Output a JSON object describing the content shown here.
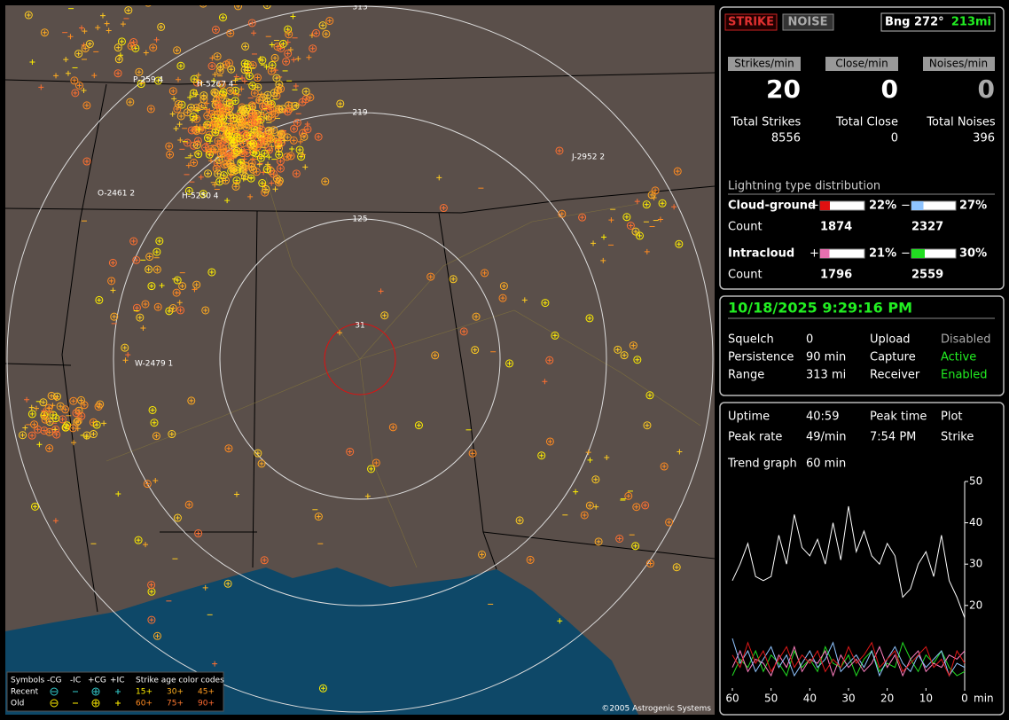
{
  "map": {
    "ring_labels": [
      313,
      219,
      125,
      31
    ],
    "storm_labels": [
      "P-259 4",
      "H-5267 4",
      "J-2952 2",
      "O-2461 2",
      "H-5250 4",
      "W-2479 1"
    ],
    "legend": {
      "symbols": "Symbols",
      "types": [
        "-CG",
        "-IC",
        "+CG",
        "+IC"
      ],
      "age_title": "Strike age color codes",
      "recent": "Recent",
      "old": "Old",
      "recent_ages": [
        "15+",
        "30+",
        "45+"
      ],
      "old_ages": [
        "60+",
        "75+",
        "90+"
      ]
    },
    "copyright": "©2005 Astrogenic Systems"
  },
  "status": {
    "strike": "STRIKE",
    "noise": "NOISE",
    "bearing": "Bng 272°",
    "distance": "213mi"
  },
  "rates": {
    "labels": [
      "Strikes/min",
      "Close/min",
      "Noises/min"
    ],
    "values": [
      20,
      0,
      0
    ],
    "total_labels": [
      "Total Strikes",
      "Total Close",
      "Total Noises"
    ],
    "totals": [
      8556,
      0,
      396
    ]
  },
  "distribution": {
    "title": "Lightning type distribution",
    "count_label": "Count",
    "rows": [
      {
        "name": "Cloud-ground",
        "plus_sign": "+",
        "minus_sign": "−",
        "plus": {
          "value": 22,
          "label": "22%"
        },
        "minus": {
          "value": 27,
          "label": "27%"
        },
        "plus_count": 1874,
        "minus_count": 2327
      },
      {
        "name": "Intracloud",
        "plus_sign": "+",
        "minus_sign": "−",
        "plus": {
          "value": 21,
          "label": "21%"
        },
        "minus": {
          "value": 30,
          "label": "30%"
        },
        "plus_count": 1796,
        "minus_count": 2559
      }
    ]
  },
  "settings": {
    "datetime": "10/18/2025 9:29:16 PM",
    "rows": [
      [
        "Squelch",
        "0",
        "Upload",
        "Disabled"
      ],
      [
        "Persistence",
        "90 min",
        "Capture",
        "Active"
      ],
      [
        "Range",
        "313 mi",
        "Receiver",
        "Enabled"
      ]
    ]
  },
  "stats": {
    "rows": [
      [
        "Uptime",
        "40:59",
        "Peak time",
        "Plot"
      ],
      [
        "Peak rate",
        "49/min",
        "7:54 PM",
        "Strike"
      ]
    ],
    "trend_label": "Trend graph",
    "trend_span": "60 min"
  },
  "trend": {
    "type": "line",
    "x": [
      60,
      58,
      56,
      54,
      52,
      50,
      48,
      46,
      44,
      42,
      40,
      38,
      36,
      34,
      32,
      30,
      28,
      26,
      24,
      22,
      20,
      18,
      16,
      14,
      12,
      10,
      8,
      6,
      4,
      2,
      0
    ],
    "xlim": [
      60,
      0
    ],
    "ylim": [
      0,
      50
    ],
    "xticks": [
      60,
      50,
      40,
      30,
      20,
      10,
      0
    ],
    "yticks": [
      20,
      30,
      40,
      50
    ],
    "x_unit": "min",
    "series": [
      {
        "color": "#ffffff",
        "values": [
          26,
          30,
          35,
          27,
          26,
          27,
          37,
          30,
          42,
          34,
          32,
          36,
          30,
          40,
          31,
          44,
          33,
          38,
          32,
          30,
          35,
          32,
          22,
          24,
          30,
          33,
          27,
          37,
          26,
          22,
          17
        ]
      },
      {
        "color": "#e01818",
        "values": [
          8,
          5,
          11,
          6,
          9,
          4,
          7,
          10,
          5,
          8,
          6,
          9,
          4,
          7,
          5,
          10,
          6,
          8,
          11,
          5,
          7,
          9,
          4,
          6,
          8,
          10,
          5,
          7,
          3,
          9,
          6
        ]
      },
      {
        "color": "#8fc4ff",
        "values": [
          12,
          6,
          9,
          4,
          7,
          10,
          5,
          8,
          3,
          6,
          9,
          5,
          7,
          11,
          4,
          6,
          8,
          5,
          9,
          3,
          7,
          10,
          6,
          4,
          8,
          5,
          7,
          9,
          3,
          6,
          5
        ]
      },
      {
        "color": "#ff7fc0",
        "values": [
          5,
          9,
          4,
          7,
          6,
          3,
          8,
          5,
          10,
          4,
          7,
          6,
          9,
          3,
          8,
          5,
          7,
          4,
          6,
          10,
          5,
          8,
          3,
          7,
          9,
          4,
          6,
          5,
          8,
          7,
          9
        ]
      },
      {
        "color": "#22dd22",
        "values": [
          3,
          7,
          5,
          9,
          4,
          8,
          6,
          3,
          9,
          5,
          7,
          4,
          10,
          6,
          5,
          8,
          3,
          7,
          9,
          4,
          6,
          5,
          11,
          7,
          4,
          8,
          6,
          9,
          5,
          3,
          4
        ]
      }
    ]
  }
}
